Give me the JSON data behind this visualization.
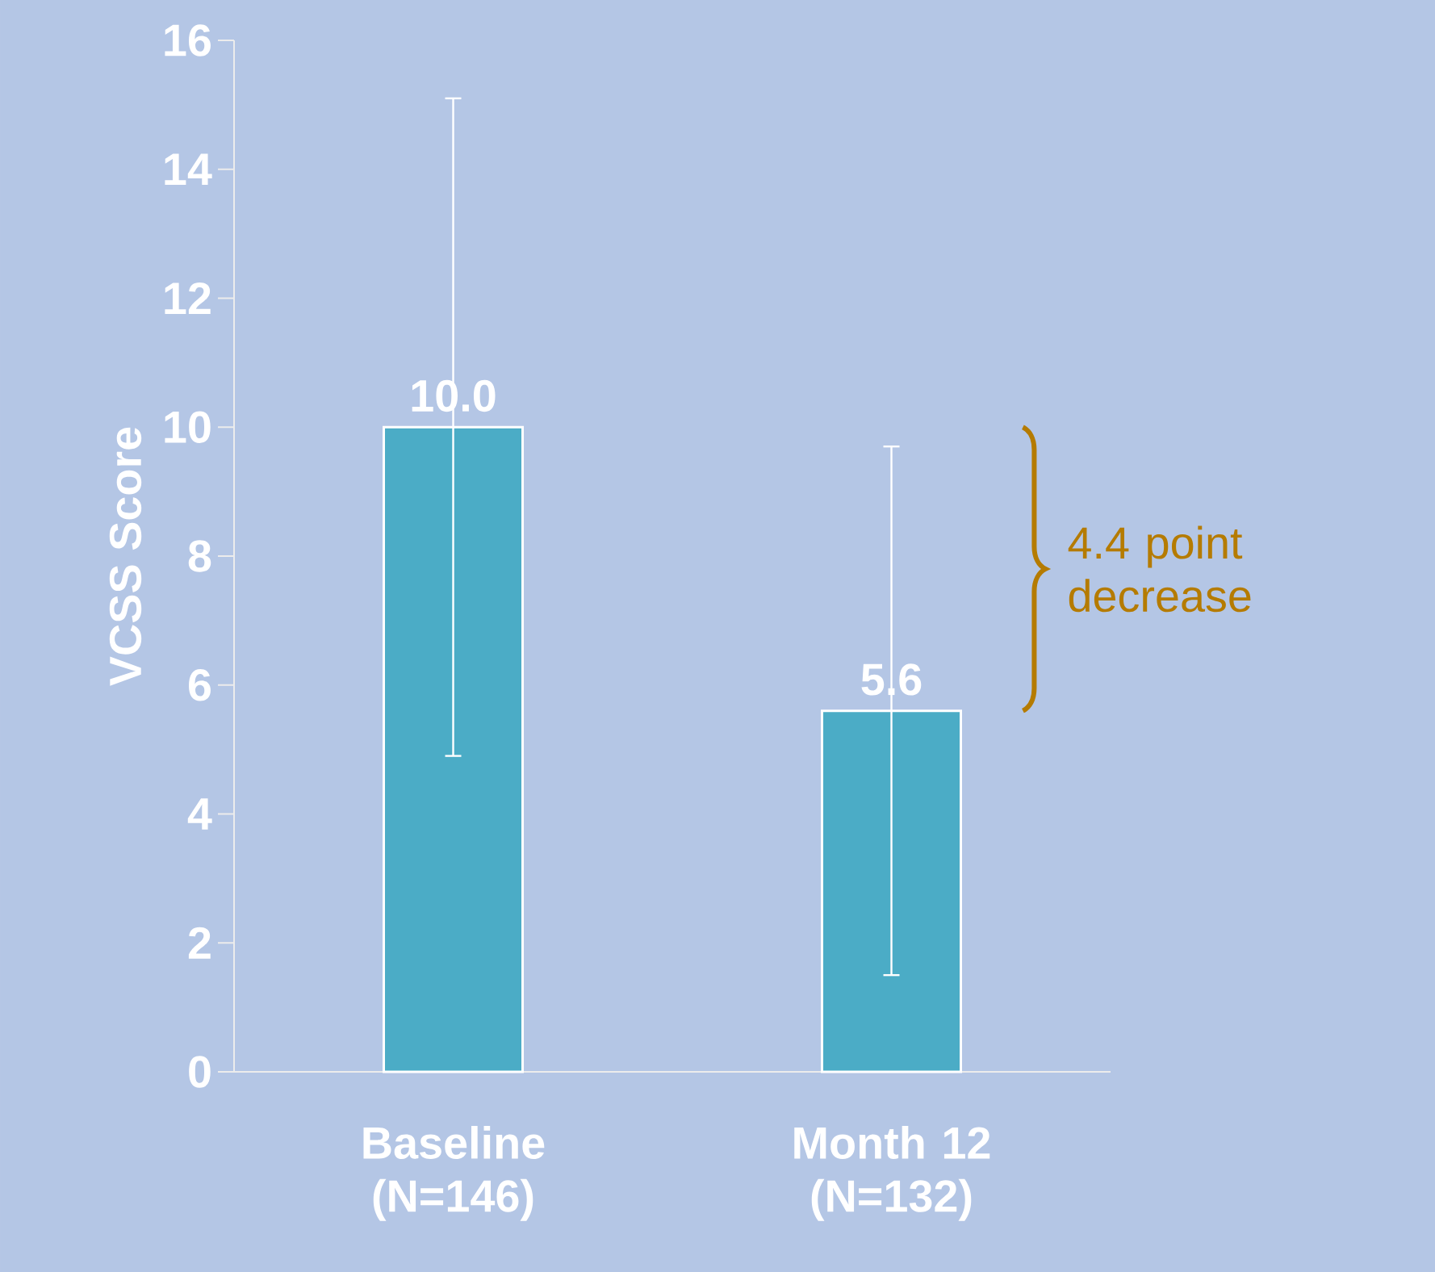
{
  "chart_data": {
    "type": "bar",
    "categories": [
      "Baseline (N=146)",
      "Month 12 (N=132)"
    ],
    "values": [
      10.0,
      5.6
    ],
    "color": "#4bacc6",
    "errors": [
      5.1,
      4.1
    ],
    "value_labels": [
      "10.0",
      "5.6"
    ],
    "ylabel": "VCSS Score",
    "ylim": [
      0,
      16
    ],
    "yticks": [
      0,
      2,
      4,
      6,
      8,
      10,
      12,
      14,
      16
    ],
    "annotations": [
      "4.4 point decrease"
    ]
  }
}
